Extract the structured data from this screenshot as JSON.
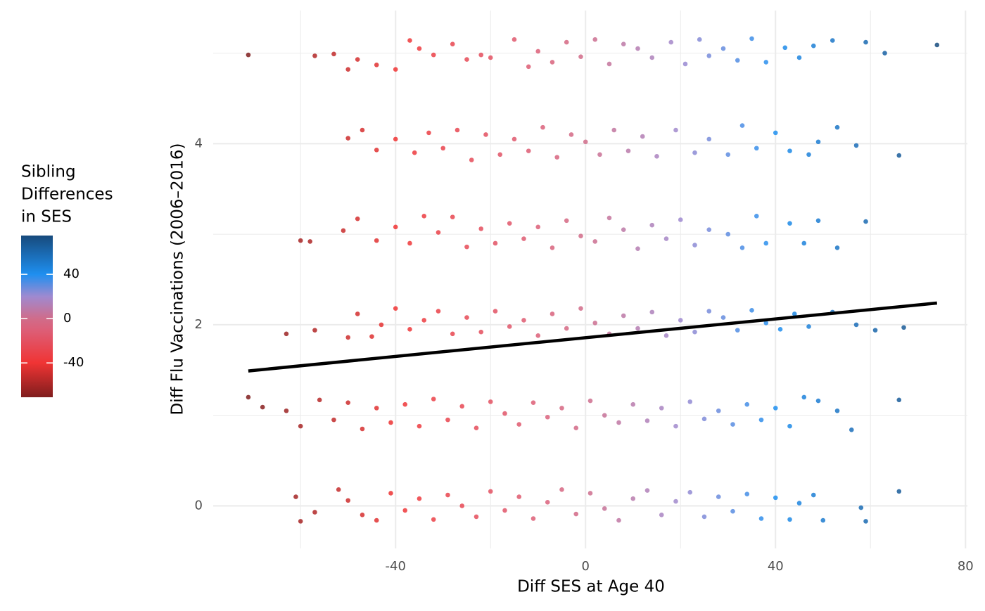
{
  "chart_data": {
    "type": "scatter",
    "xlabel": "Diff SES at Age 40",
    "ylabel": "Diff Flu Vaccinations (2006–2016)",
    "xlim": [
      -78.4,
      80.4
    ],
    "xticks": [
      -40,
      0,
      40,
      80
    ],
    "x_minor_grid": [
      -60,
      -20,
      20,
      60
    ],
    "ylim": [
      -0.47,
      5.47
    ],
    "yticks": [
      0,
      2,
      4
    ],
    "y_minor_grid": [
      1,
      3,
      5
    ],
    "grid": true,
    "x": [
      -71,
      -57,
      -53,
      -50,
      -48,
      -44,
      -40,
      -37,
      -35,
      -32,
      -28,
      -25,
      -22,
      -20,
      -15,
      -12,
      -10,
      -7,
      -4,
      -1,
      2,
      5,
      8,
      11,
      14,
      18,
      21,
      24,
      26,
      29,
      32,
      35,
      38,
      42,
      45,
      48,
      52,
      59,
      63,
      74,
      -50,
      -47,
      -44,
      -40,
      -36,
      -33,
      -30,
      -27,
      -24,
      -21,
      -18,
      -15,
      -12,
      -9,
      -6,
      -3,
      0,
      3,
      6,
      9,
      12,
      15,
      19,
      23,
      26,
      30,
      33,
      36,
      40,
      43,
      47,
      49,
      53,
      57,
      66,
      -60,
      -58,
      -51,
      -48,
      -44,
      -40,
      -37,
      -34,
      -31,
      -28,
      -25,
      -22,
      -19,
      -16,
      -13,
      -10,
      -7,
      -4,
      -1,
      2,
      5,
      8,
      11,
      14,
      17,
      20,
      23,
      26,
      30,
      33,
      36,
      38,
      43,
      46,
      49,
      53,
      59,
      -63,
      -57,
      -50,
      -48,
      -45,
      -43,
      -40,
      -37,
      -34,
      -31,
      -28,
      -25,
      -22,
      -19,
      -16,
      -13,
      -10,
      -7,
      -4,
      -1,
      2,
      5,
      8,
      11,
      14,
      17,
      20,
      23,
      26,
      29,
      32,
      35,
      38,
      41,
      44,
      47,
      52,
      57,
      61,
      67,
      -71,
      -68,
      -63,
      -60,
      -56,
      -53,
      -50,
      -47,
      -44,
      -41,
      -38,
      -35,
      -32,
      -29,
      -26,
      -23,
      -20,
      -17,
      -14,
      -11,
      -8,
      -5,
      -2,
      1,
      4,
      7,
      10,
      13,
      16,
      19,
      22,
      25,
      28,
      31,
      34,
      37,
      40,
      43,
      46,
      49,
      53,
      56,
      66,
      -61,
      -60,
      -57,
      -52,
      -50,
      -47,
      -44,
      -41,
      -38,
      -35,
      -32,
      -29,
      -26,
      -23,
      -20,
      -17,
      -14,
      -11,
      -8,
      -5,
      -2,
      1,
      4,
      7,
      10,
      13,
      16,
      19,
      22,
      25,
      28,
      31,
      34,
      37,
      40,
      43,
      45,
      48,
      50,
      58,
      59,
      66
    ],
    "y": [
      4.98,
      4.97,
      4.99,
      4.82,
      4.93,
      4.87,
      4.82,
      5.14,
      5.05,
      4.98,
      5.1,
      4.93,
      4.98,
      4.95,
      5.15,
      4.85,
      5.02,
      4.9,
      5.12,
      4.96,
      5.15,
      4.88,
      5.1,
      5.05,
      4.95,
      5.12,
      4.88,
      5.15,
      4.97,
      5.05,
      4.92,
      5.16,
      4.9,
      5.06,
      4.95,
      5.08,
      5.14,
      5.12,
      5.0,
      5.09,
      4.06,
      4.15,
      3.93,
      4.05,
      3.9,
      4.12,
      3.95,
      4.15,
      3.82,
      4.1,
      3.88,
      4.05,
      3.92,
      4.18,
      3.85,
      4.1,
      4.02,
      3.88,
      4.15,
      3.92,
      4.08,
      3.86,
      4.15,
      3.9,
      4.05,
      3.88,
      4.2,
      3.95,
      4.12,
      3.92,
      3.88,
      4.02,
      4.18,
      3.98,
      3.87,
      2.93,
      2.92,
      3.04,
      3.17,
      2.93,
      3.08,
      2.9,
      3.2,
      3.02,
      3.19,
      2.86,
      3.06,
      2.9,
      3.12,
      2.95,
      3.08,
      2.85,
      3.15,
      2.98,
      2.92,
      3.18,
      3.05,
      2.84,
      3.1,
      2.95,
      3.16,
      2.88,
      3.05,
      3.0,
      2.85,
      3.2,
      2.9,
      3.12,
      2.9,
      3.15,
      2.85,
      3.14,
      1.9,
      1.94,
      1.86,
      2.12,
      1.87,
      2.0,
      2.18,
      1.95,
      2.05,
      2.15,
      1.9,
      2.08,
      1.92,
      2.15,
      1.98,
      2.05,
      1.88,
      2.12,
      1.96,
      2.18,
      2.02,
      1.9,
      2.1,
      1.96,
      2.14,
      1.88,
      2.05,
      1.92,
      2.15,
      2.08,
      1.94,
      2.16,
      2.02,
      1.95,
      2.12,
      1.98,
      2.14,
      2.0,
      1.94,
      1.97,
      1.2,
      1.09,
      1.05,
      0.88,
      1.17,
      0.95,
      1.14,
      0.85,
      1.08,
      0.92,
      1.12,
      0.88,
      1.18,
      0.95,
      1.1,
      0.86,
      1.15,
      1.02,
      0.9,
      1.14,
      0.98,
      1.08,
      0.86,
      1.16,
      1.0,
      0.92,
      1.12,
      0.94,
      1.08,
      0.88,
      1.15,
      0.96,
      1.05,
      0.9,
      1.12,
      0.95,
      1.08,
      0.88,
      1.2,
      1.16,
      1.05,
      0.84,
      1.17,
      0.1,
      -0.17,
      -0.07,
      0.18,
      0.06,
      -0.1,
      -0.16,
      0.14,
      -0.05,
      0.08,
      -0.15,
      0.12,
      0.0,
      -0.12,
      0.16,
      -0.05,
      0.1,
      -0.14,
      0.04,
      0.18,
      -0.09,
      0.14,
      -0.03,
      -0.16,
      0.08,
      0.17,
      -0.1,
      0.05,
      0.15,
      -0.12,
      0.1,
      -0.06,
      0.13,
      -0.14,
      0.09,
      -0.15,
      0.03,
      0.12,
      -0.16,
      -0.02,
      -0.17,
      0.16
    ],
    "trend": {
      "x": [
        -71,
        74
      ],
      "y": [
        1.49,
        2.24
      ],
      "color": "#000000"
    },
    "colorbar": {
      "title_lines": [
        "Sibling",
        "Differences",
        "in SES"
      ],
      "limits": [
        -71,
        75
      ],
      "ticks": [
        -40,
        0,
        40
      ],
      "stops": [
        {
          "value": -71,
          "color": "#7f1d1d"
        },
        {
          "value": -40,
          "color": "#f03434"
        },
        {
          "value": -10,
          "color": "#dc5f78"
        },
        {
          "value": 0,
          "color": "#d06c8a"
        },
        {
          "value": 20,
          "color": "#9f8ad0"
        },
        {
          "value": 40,
          "color": "#1e8ff0"
        },
        {
          "value": 75,
          "color": "#174a7c"
        }
      ]
    }
  }
}
